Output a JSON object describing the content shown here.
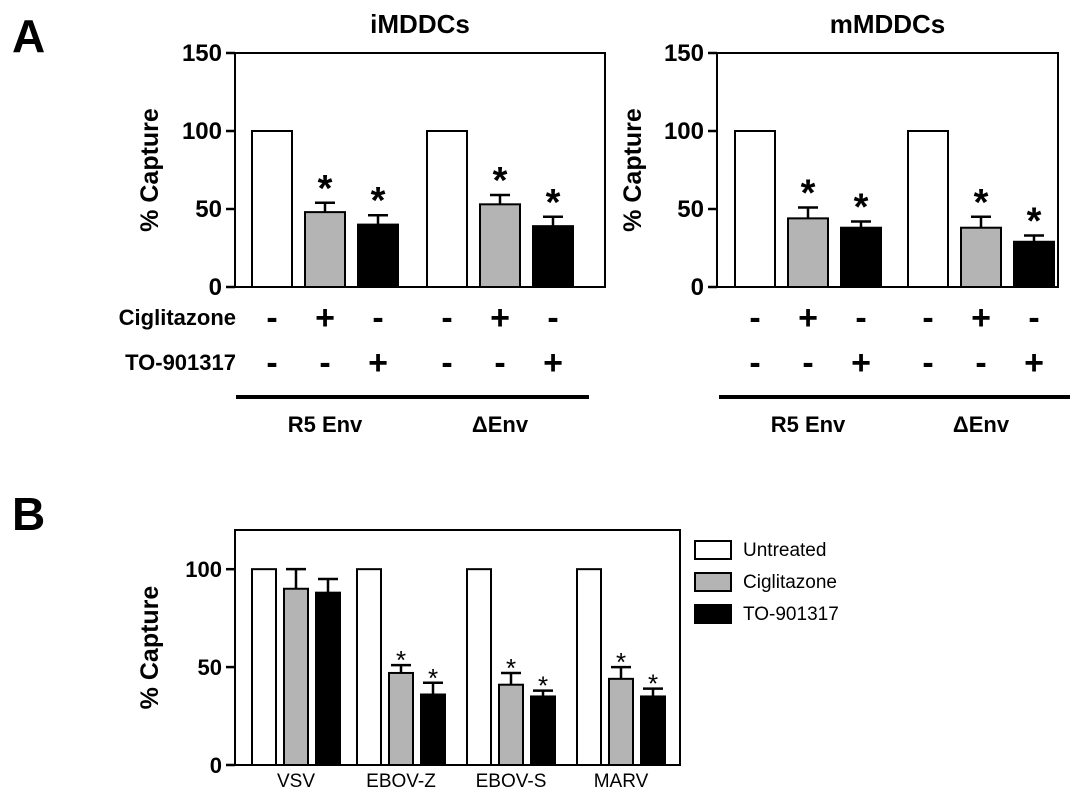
{
  "panels": {
    "a": "A",
    "b": "B"
  },
  "colors": {
    "untreated": "#ffffff",
    "ciglitazone": "#b4b4b4",
    "to901317": "#000000",
    "stroke": "#000000"
  },
  "chart_data": [
    {
      "type": "bar",
      "title": "iMDDCs",
      "ylabel": "%  Capture",
      "ylim": [
        0,
        150
      ],
      "yticks": [
        0,
        50,
        100,
        150
      ],
      "groups": [
        "R5 Env",
        "ΔEnv"
      ],
      "treatment_rows": [
        {
          "label": "Ciglitazone",
          "signs": [
            "-",
            "+",
            "-",
            "-",
            "+",
            "-"
          ]
        },
        {
          "label": "TO-901317",
          "signs": [
            "-",
            "-",
            "+",
            "-",
            "-",
            "+"
          ]
        }
      ],
      "series": [
        {
          "name": "Untreated",
          "values": [
            100,
            100
          ],
          "errors": [
            0,
            0
          ],
          "significant": [
            false,
            false
          ]
        },
        {
          "name": "Ciglitazone",
          "values": [
            48,
            53
          ],
          "errors": [
            6,
            6
          ],
          "significant": [
            true,
            true
          ]
        },
        {
          "name": "TO-901317",
          "values": [
            40,
            39
          ],
          "errors": [
            6,
            6
          ],
          "significant": [
            true,
            true
          ]
        }
      ],
      "star": "*"
    },
    {
      "type": "bar",
      "title": "mMDDCs",
      "ylabel": "%  Capture",
      "ylim": [
        0,
        150
      ],
      "yticks": [
        0,
        50,
        100,
        150
      ],
      "groups": [
        "R5 Env",
        "ΔEnv"
      ],
      "treatment_rows": [
        {
          "label": "",
          "signs": [
            "-",
            "+",
            "-",
            "-",
            "+",
            "-"
          ]
        },
        {
          "label": "",
          "signs": [
            "-",
            "-",
            "+",
            "-",
            "-",
            "+"
          ]
        }
      ],
      "series": [
        {
          "name": "Untreated",
          "values": [
            100,
            100
          ],
          "errors": [
            0,
            0
          ],
          "significant": [
            false,
            false
          ]
        },
        {
          "name": "Ciglitazone",
          "values": [
            44,
            38
          ],
          "errors": [
            7,
            7
          ],
          "significant": [
            true,
            true
          ]
        },
        {
          "name": "TO-901317",
          "values": [
            38,
            29
          ],
          "errors": [
            4,
            4
          ],
          "significant": [
            true,
            true
          ]
        }
      ],
      "star": "*"
    },
    {
      "type": "bar",
      "title": "",
      "ylabel": "%  Capture",
      "ylim": [
        0,
        120
      ],
      "yticks": [
        0,
        50,
        100
      ],
      "categories": [
        "VSV",
        "EBOV-Z",
        "EBOV-S",
        "MARV"
      ],
      "series": [
        {
          "name": "Untreated",
          "values": [
            100,
            100,
            100,
            100
          ],
          "errors": [
            0,
            0,
            0,
            0
          ],
          "significant": [
            false,
            false,
            false,
            false
          ]
        },
        {
          "name": "Ciglitazone",
          "values": [
            90,
            47,
            41,
            44
          ],
          "errors": [
            10,
            4,
            6,
            6
          ],
          "significant": [
            false,
            true,
            true,
            true
          ]
        },
        {
          "name": "TO-901317",
          "values": [
            88,
            36,
            35,
            35
          ],
          "errors": [
            7,
            6,
            3,
            4
          ],
          "significant": [
            false,
            true,
            true,
            true
          ]
        }
      ],
      "legend": {
        "position": "right",
        "entries": [
          "Untreated",
          "Ciglitazone",
          "TO-901317"
        ]
      },
      "star": "*"
    }
  ]
}
